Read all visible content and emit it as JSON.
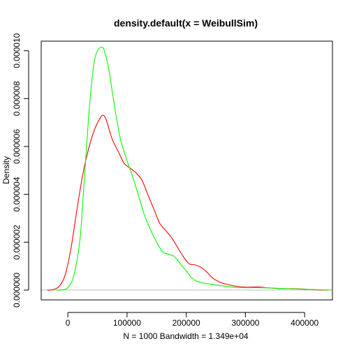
{
  "chart_data": {
    "type": "line",
    "title": "density.default(x = WeibullSim)",
    "xlabel": "N = 1000   Bandwidth = 1.349e+04",
    "ylabel": "Density",
    "xlim": [
      -45000,
      447000
    ],
    "ylim": [
      -4.1e-07,
      1.04e-05
    ],
    "x_ticks": [
      0,
      100000,
      200000,
      300000,
      400000
    ],
    "x_tick_labels": [
      "0",
      "100000",
      "200000",
      "300000",
      "400000"
    ],
    "y_ticks": [
      0,
      2e-06,
      4e-06,
      6e-06,
      8e-06,
      1e-05
    ],
    "y_tick_labels": [
      "0.000000",
      "0.000002",
      "0.000004",
      "0.000006",
      "0.000008",
      "0.000010"
    ],
    "baseline": {
      "y": 0,
      "color": "#bebebe"
    },
    "grid": false,
    "legend": "none",
    "series": [
      {
        "color": "#ff0000",
        "x": [
          -35000,
          -25000,
          -15000,
          -5000,
          5000,
          15000,
          25000,
          35000,
          45000,
          55000,
          60000,
          65000,
          75000,
          85000,
          95000,
          105000,
          115000,
          125000,
          135000,
          145000,
          155000,
          165000,
          175000,
          185000,
          195000,
          205000,
          215000,
          225000,
          235000,
          245000,
          260000,
          280000,
          300000,
          320000,
          340000,
          360000,
          380000,
          400000,
          420000,
          440000
        ],
        "y": [
          0,
          2e-08,
          1.5e-07,
          6e-07,
          1.7e-06,
          3.3e-06,
          4.8e-06,
          5.9e-06,
          6.7e-06,
          7.2e-06,
          7.3e-06,
          7.1e-06,
          6.3e-06,
          5.8e-06,
          5.3e-06,
          5.1e-06,
          4.9e-06,
          4.6e-06,
          4e-06,
          3.4e-06,
          2.8e-06,
          2.5e-06,
          2.2e-06,
          1.8e-06,
          1.4e-06,
          1.1e-06,
          1.05e-06,
          9.5e-07,
          7.5e-07,
          5e-07,
          3e-07,
          1.8e-07,
          1.2e-07,
          1.3e-07,
          9e-08,
          6e-08,
          6e-08,
          4e-08,
          1e-08,
          0
        ]
      },
      {
        "color": "#00ff00",
        "x": [
          -20000,
          -10000,
          0,
          10000,
          20000,
          25000,
          30000,
          35000,
          40000,
          45000,
          50000,
          55000,
          60000,
          65000,
          70000,
          75000,
          80000,
          85000,
          90000,
          100000,
          110000,
          120000,
          130000,
          140000,
          150000,
          160000,
          170000,
          180000,
          190000,
          200000,
          210000,
          220000,
          240000,
          260000,
          280000,
          300000,
          320000,
          340000,
          360000,
          380000,
          400000,
          420000,
          445000
        ],
        "y": [
          0,
          1e-08,
          1e-07,
          6e-07,
          2e-06,
          3.6e-06,
          5.4e-06,
          7.2e-06,
          8.6e-06,
          9.6e-06,
          1e-05,
          1.013e-05,
          1.01e-05,
          9.7e-06,
          9.1e-06,
          8.3e-06,
          7.5e-06,
          6.8e-06,
          6.2e-06,
          5.4e-06,
          4.7e-06,
          3.9e-06,
          3.1e-06,
          2.5e-06,
          2e-06,
          1.6e-06,
          1.5e-06,
          1.4e-06,
          1.1e-06,
          8e-07,
          5e-07,
          3.5e-07,
          2.5e-07,
          1.8e-07,
          1.2e-07,
          1e-07,
          1e-07,
          9e-08,
          7e-08,
          5e-08,
          3e-08,
          2e-08,
          0
        ]
      }
    ]
  }
}
